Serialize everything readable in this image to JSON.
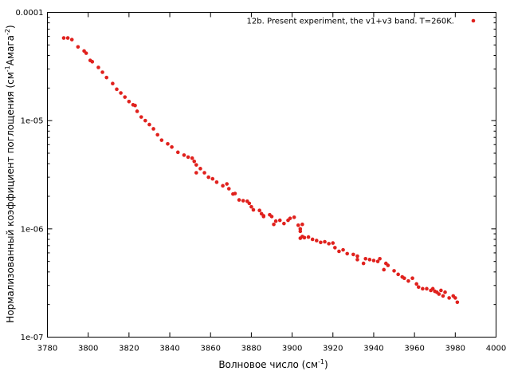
{
  "chart_data": {
    "type": "scatter",
    "title": "",
    "xlabel": "Волновое число (см",
    "xlabel_sup": "-1",
    "xlabel_tail": ")",
    "ylabel": "Нормализованный коэффициент поглощения (см",
    "ylabel_sup1": "-1",
    "ylabel_mid": "Амага",
    "ylabel_sup2": "-2",
    "ylabel_tail": ")",
    "xlim": [
      3780,
      4000
    ],
    "ylim": [
      1e-07,
      0.0001
    ],
    "yscale": "log",
    "grid": false,
    "legend_position": "top-right",
    "marker_color": "#e0211d",
    "x_ticks": [
      "3780",
      "3800",
      "3820",
      "3840",
      "3860",
      "3880",
      "3900",
      "3920",
      "3940",
      "3960",
      "3980",
      "4000"
    ],
    "y_ticks": [
      "1e-07",
      "1e-06",
      "1e-05",
      "0.0001"
    ],
    "series": [
      {
        "name": "12b. Present experiment, the v1+v3 band. T=260K.",
        "x": [
          3788,
          3790,
          3792,
          3795,
          3798,
          3799,
          3801,
          3802,
          3805,
          3807,
          3809,
          3812,
          3814,
          3816,
          3818,
          3820,
          3822,
          3823,
          3824,
          3826,
          3828,
          3830,
          3832,
          3834,
          3836,
          3839,
          3841,
          3844,
          3847,
          3849,
          3851,
          3852,
          3853,
          3853,
          3855,
          3857,
          3859,
          3861,
          3863,
          3866,
          3868,
          3869,
          3871,
          3872,
          3874,
          3876,
          3878,
          3879,
          3880,
          3881,
          3884,
          3885,
          3886,
          3886,
          3889,
          3890,
          3891,
          3892,
          3894,
          3896,
          3898,
          3899,
          3901,
          3903,
          3904,
          3904,
          3904,
          3905,
          3905,
          3906,
          3908,
          3910,
          3912,
          3914,
          3916,
          3918,
          3920,
          3921,
          3923,
          3925,
          3927,
          3930,
          3932,
          3932,
          3935,
          3936,
          3938,
          3940,
          3942,
          3943,
          3945,
          3946,
          3947,
          3950,
          3952,
          3954,
          3955,
          3957,
          3959,
          3961,
          3962,
          3964,
          3966,
          3968,
          3969,
          3970,
          3971,
          3972,
          3973,
          3974,
          3975,
          3977,
          3979,
          3980,
          3981
        ],
        "y": [
          5.8e-05,
          5.8e-05,
          5.6e-05,
          4.8e-05,
          4.4e-05,
          4.2e-05,
          3.6e-05,
          3.5e-05,
          3.1e-05,
          2.8e-05,
          2.5e-05,
          2.2e-05,
          1.95e-05,
          1.8e-05,
          1.65e-05,
          1.5e-05,
          1.4e-05,
          1.38e-05,
          1.22e-05,
          1.08e-05,
          1e-05,
          9.2e-06,
          8.4e-06,
          7.4e-06,
          6.6e-06,
          6.1e-06,
          5.7e-06,
          5.1e-06,
          4.8e-06,
          4.6e-06,
          4.5e-06,
          4.2e-06,
          3.9e-06,
          3.3e-06,
          3.6e-06,
          3.3e-06,
          3e-06,
          2.9e-06,
          2.7e-06,
          2.5e-06,
          2.6e-06,
          2.35e-06,
          2.1e-06,
          2.12e-06,
          1.85e-06,
          1.82e-06,
          1.8e-06,
          1.72e-06,
          1.6e-06,
          1.5e-06,
          1.48e-06,
          1.38e-06,
          1.32e-06,
          1.3e-06,
          1.35e-06,
          1.3e-06,
          1.1e-06,
          1.18e-06,
          1.2e-06,
          1.12e-06,
          1.2e-06,
          1.25e-06,
          1.28e-06,
          1.08e-06,
          1e-06,
          9.5e-07,
          8.2e-07,
          8.5e-07,
          1.1e-06,
          8.3e-07,
          8.4e-07,
          8e-07,
          7.8e-07,
          7.5e-07,
          7.6e-07,
          7.3e-07,
          7.4e-07,
          6.7e-07,
          6.2e-07,
          6.4e-07,
          5.9e-07,
          5.8e-07,
          5.2e-07,
          5.6e-07,
          4.8e-07,
          5.3e-07,
          5.2e-07,
          5.1e-07,
          5e-07,
          5.3e-07,
          4.2e-07,
          4.8e-07,
          4.6e-07,
          4.1e-07,
          3.8e-07,
          3.6e-07,
          3.5e-07,
          3.3e-07,
          3.5e-07,
          3.1e-07,
          2.9e-07,
          2.8e-07,
          2.8e-07,
          2.7e-07,
          2.8e-07,
          2.65e-07,
          2.6e-07,
          2.5e-07,
          2.7e-07,
          2.4e-07,
          2.6e-07,
          2.3e-07,
          2.4e-07,
          2.3e-07,
          2.1e-07
        ]
      }
    ]
  }
}
